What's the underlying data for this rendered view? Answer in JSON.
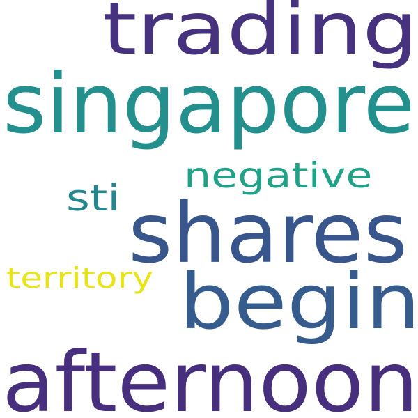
{
  "cloud": {
    "background": "#ffffff",
    "words": [
      {
        "text": "trading",
        "color": "#46327e"
      },
      {
        "text": "singapore",
        "color": "#23908d"
      },
      {
        "text": "negative",
        "color": "#1fa287"
      },
      {
        "text": "sti",
        "color": "#25858e"
      },
      {
        "text": "shares",
        "color": "#39568c"
      },
      {
        "text": "territory",
        "color": "#e8e419"
      },
      {
        "text": "begin",
        "color": "#365c8d"
      },
      {
        "text": "afternoon",
        "color": "#472f7d"
      }
    ]
  }
}
